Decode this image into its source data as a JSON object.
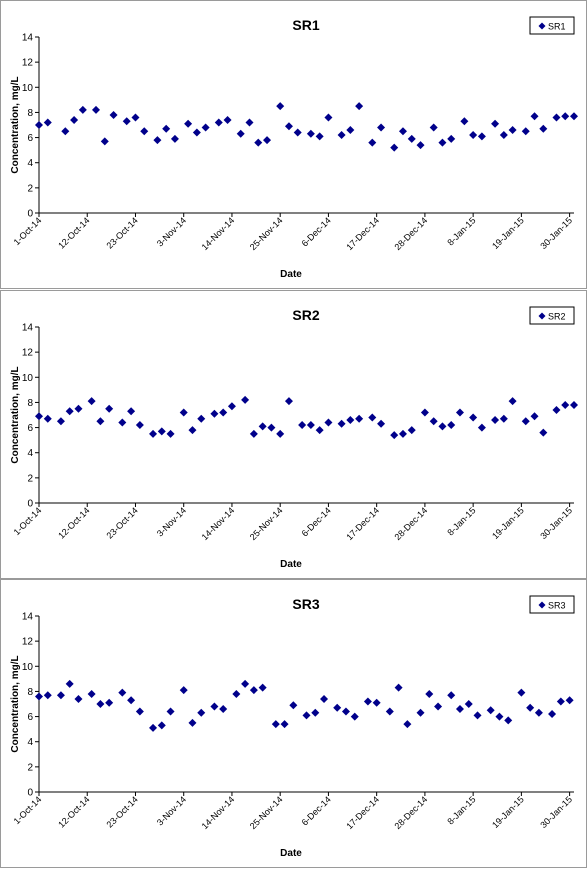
{
  "chart_data": [
    {
      "type": "scatter",
      "title": "SR1",
      "xlabel": "Date",
      "ylabel": "Concentration, mg/L",
      "ylim": [
        0,
        14
      ],
      "y_ticks": [
        0,
        2,
        4,
        6,
        8,
        10,
        12,
        14
      ],
      "xlim": [
        "1-Oct-14",
        "31-Jan-15"
      ],
      "x_ticks": [
        "1-Oct-14",
        "12-Oct-14",
        "23-Oct-14",
        "3-Nov-14",
        "14-Nov-14",
        "25-Nov-14",
        "6-Dec-14",
        "17-Dec-14",
        "28-Dec-14",
        "8-Jan-15",
        "19-Jan-15",
        "30-Jan-15"
      ],
      "legend": "top-right",
      "grid": false,
      "marker_color": "#00008b",
      "series": [
        {
          "name": "SR1",
          "x": [
            "1-Oct-14",
            "3-Oct-14",
            "7-Oct-14",
            "9-Oct-14",
            "11-Oct-14",
            "14-Oct-14",
            "16-Oct-14",
            "18-Oct-14",
            "21-Oct-14",
            "23-Oct-14",
            "25-Oct-14",
            "28-Oct-14",
            "30-Oct-14",
            "1-Nov-14",
            "4-Nov-14",
            "6-Nov-14",
            "8-Nov-14",
            "11-Nov-14",
            "13-Nov-14",
            "16-Nov-14",
            "18-Nov-14",
            "20-Nov-14",
            "22-Nov-14",
            "25-Nov-14",
            "27-Nov-14",
            "29-Nov-14",
            "2-Dec-14",
            "4-Dec-14",
            "6-Dec-14",
            "9-Dec-14",
            "11-Dec-14",
            "13-Dec-14",
            "16-Dec-14",
            "18-Dec-14",
            "21-Dec-14",
            "23-Dec-14",
            "25-Dec-14",
            "27-Dec-14",
            "30-Dec-14",
            "1-Jan-15",
            "3-Jan-15",
            "6-Jan-15",
            "8-Jan-15",
            "10-Jan-15",
            "13-Jan-15",
            "15-Jan-15",
            "17-Jan-15",
            "20-Jan-15",
            "22-Jan-15",
            "24-Jan-15",
            "27-Jan-15",
            "29-Jan-15",
            "31-Jan-15"
          ],
          "y": [
            7.0,
            7.2,
            6.5,
            7.4,
            8.2,
            8.2,
            5.7,
            7.8,
            7.3,
            7.6,
            6.5,
            5.8,
            6.7,
            5.9,
            7.1,
            6.4,
            6.8,
            7.2,
            7.4,
            6.3,
            7.2,
            5.6,
            5.8,
            8.5,
            6.9,
            6.4,
            6.3,
            6.1,
            7.6,
            6.2,
            6.6,
            8.5,
            5.6,
            6.8,
            5.2,
            6.5,
            5.9,
            5.4,
            6.8,
            5.6,
            5.9,
            7.3,
            6.2,
            6.1,
            7.1,
            6.2,
            6.6,
            6.5,
            7.7,
            6.7,
            7.6,
            7.7,
            7.7
          ]
        }
      ]
    },
    {
      "type": "scatter",
      "title": "SR2",
      "xlabel": "Date",
      "ylabel": "Concentration, mg/L",
      "ylim": [
        0,
        14
      ],
      "y_ticks": [
        0,
        2,
        4,
        6,
        8,
        10,
        12,
        14
      ],
      "xlim": [
        "1-Oct-14",
        "31-Jan-15"
      ],
      "x_ticks": [
        "1-Oct-14",
        "12-Oct-14",
        "23-Oct-14",
        "3-Nov-14",
        "14-Nov-14",
        "25-Nov-14",
        "6-Dec-14",
        "17-Dec-14",
        "28-Dec-14",
        "8-Jan-15",
        "19-Jan-15",
        "30-Jan-15"
      ],
      "legend": "top-right",
      "grid": false,
      "marker_color": "#00008b",
      "series": [
        {
          "name": "SR2",
          "x": [
            "1-Oct-14",
            "3-Oct-14",
            "6-Oct-14",
            "8-Oct-14",
            "10-Oct-14",
            "13-Oct-14",
            "15-Oct-14",
            "17-Oct-14",
            "20-Oct-14",
            "22-Oct-14",
            "24-Oct-14",
            "27-Oct-14",
            "29-Oct-14",
            "31-Oct-14",
            "3-Nov-14",
            "5-Nov-14",
            "7-Nov-14",
            "10-Nov-14",
            "12-Nov-14",
            "14-Nov-14",
            "17-Nov-14",
            "19-Nov-14",
            "21-Nov-14",
            "23-Nov-14",
            "25-Nov-14",
            "27-Nov-14",
            "30-Nov-14",
            "2-Dec-14",
            "4-Dec-14",
            "6-Dec-14",
            "9-Dec-14",
            "11-Dec-14",
            "13-Dec-14",
            "16-Dec-14",
            "18-Dec-14",
            "21-Dec-14",
            "23-Dec-14",
            "25-Dec-14",
            "28-Dec-14",
            "30-Dec-14",
            "1-Jan-15",
            "3-Jan-15",
            "5-Jan-15",
            "8-Jan-15",
            "10-Jan-15",
            "13-Jan-15",
            "15-Jan-15",
            "17-Jan-15",
            "20-Jan-15",
            "22-Jan-15",
            "24-Jan-15",
            "27-Jan-15",
            "29-Jan-15",
            "31-Jan-15"
          ],
          "y": [
            6.9,
            6.7,
            6.5,
            7.3,
            7.5,
            8.1,
            6.5,
            7.5,
            6.4,
            7.3,
            6.2,
            5.5,
            5.7,
            5.5,
            7.2,
            5.8,
            6.7,
            7.1,
            7.2,
            7.7,
            8.2,
            5.5,
            6.1,
            6.0,
            5.5,
            8.1,
            6.2,
            6.2,
            5.8,
            6.4,
            6.3,
            6.6,
            6.7,
            6.8,
            6.3,
            5.4,
            5.5,
            5.8,
            7.2,
            6.5,
            6.1,
            6.2,
            7.2,
            6.8,
            6.0,
            6.6,
            6.7,
            8.1,
            6.5,
            6.9,
            5.6,
            7.4,
            7.8,
            7.8
          ]
        }
      ]
    },
    {
      "type": "scatter",
      "title": "SR3",
      "xlabel": "Date",
      "ylabel": "Concentration, mg/L",
      "ylim": [
        0,
        14
      ],
      "y_ticks": [
        0,
        2,
        4,
        6,
        8,
        10,
        12,
        14
      ],
      "xlim": [
        "1-Oct-14",
        "31-Jan-15"
      ],
      "x_ticks": [
        "1-Oct-14",
        "12-Oct-14",
        "23-Oct-14",
        "3-Nov-14",
        "14-Nov-14",
        "25-Nov-14",
        "6-Dec-14",
        "17-Dec-14",
        "28-Dec-14",
        "8-Jan-15",
        "19-Jan-15",
        "30-Jan-15"
      ],
      "legend": "top-right",
      "grid": false,
      "marker_color": "#00008b",
      "series": [
        {
          "name": "SR3",
          "x": [
            "1-Oct-14",
            "3-Oct-14",
            "6-Oct-14",
            "8-Oct-14",
            "10-Oct-14",
            "13-Oct-14",
            "15-Oct-14",
            "17-Oct-14",
            "20-Oct-14",
            "22-Oct-14",
            "24-Oct-14",
            "27-Oct-14",
            "29-Oct-14",
            "31-Oct-14",
            "3-Nov-14",
            "5-Nov-14",
            "7-Nov-14",
            "10-Nov-14",
            "12-Nov-14",
            "15-Nov-14",
            "17-Nov-14",
            "19-Nov-14",
            "21-Nov-14",
            "24-Nov-14",
            "26-Nov-14",
            "28-Nov-14",
            "1-Dec-14",
            "3-Dec-14",
            "5-Dec-14",
            "8-Dec-14",
            "10-Dec-14",
            "12-Dec-14",
            "15-Dec-14",
            "17-Dec-14",
            "20-Dec-14",
            "22-Dec-14",
            "24-Dec-14",
            "27-Dec-14",
            "29-Dec-14",
            "31-Dec-14",
            "3-Jan-15",
            "5-Jan-15",
            "7-Jan-15",
            "9-Jan-15",
            "12-Jan-15",
            "14-Jan-15",
            "16-Jan-15",
            "19-Jan-15",
            "21-Jan-15",
            "23-Jan-15",
            "26-Jan-15",
            "28-Jan-15",
            "30-Jan-15"
          ],
          "y": [
            7.6,
            7.7,
            7.7,
            8.6,
            7.4,
            7.8,
            7.0,
            7.1,
            7.9,
            7.3,
            6.4,
            5.1,
            5.3,
            6.4,
            8.1,
            5.5,
            6.3,
            6.8,
            6.6,
            7.8,
            8.6,
            8.1,
            8.3,
            5.4,
            5.4,
            6.9,
            6.1,
            6.3,
            7.4,
            6.7,
            6.4,
            6.0,
            7.2,
            7.1,
            6.4,
            8.3,
            5.4,
            6.3,
            7.8,
            6.8,
            7.7,
            6.6,
            7.0,
            6.1,
            6.5,
            6.0,
            5.7,
            7.9,
            6.7,
            6.3,
            6.2,
            7.2,
            7.3
          ]
        }
      ]
    }
  ]
}
